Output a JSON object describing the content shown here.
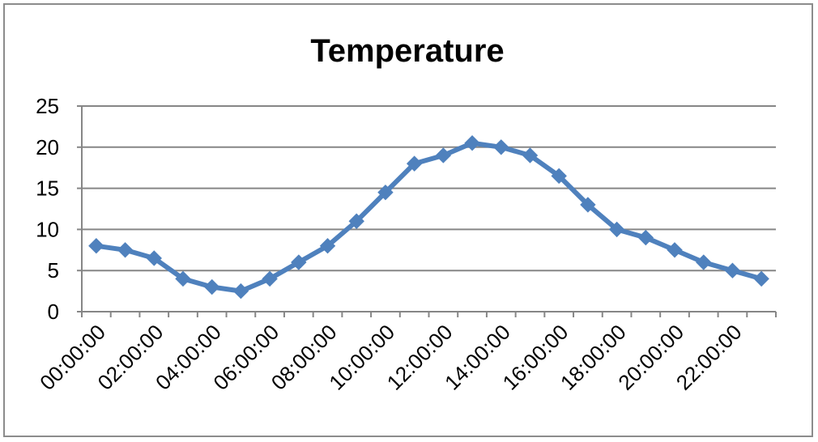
{
  "chart_data": {
    "type": "line",
    "title": "Temperature",
    "xlabel": "",
    "ylabel": "",
    "ylim": [
      0,
      25
    ],
    "y_ticks": [
      "0",
      "5",
      "10",
      "15",
      "20",
      "25"
    ],
    "x_tick_labels": [
      "00:00:00",
      "02:00:00",
      "04:00:00",
      "06:00:00",
      "08:00:00",
      "10:00:00",
      "12:00:00",
      "14:00:00",
      "16:00:00",
      "18:00:00",
      "20:00:00",
      "22:00:00"
    ],
    "x": [
      "00:00:00",
      "01:00:00",
      "02:00:00",
      "03:00:00",
      "04:00:00",
      "05:00:00",
      "06:00:00",
      "07:00:00",
      "08:00:00",
      "09:00:00",
      "10:00:00",
      "11:00:00",
      "12:00:00",
      "13:00:00",
      "14:00:00",
      "15:00:00",
      "16:00:00",
      "17:00:00",
      "18:00:00",
      "19:00:00",
      "20:00:00",
      "21:00:00",
      "22:00:00",
      "23:00:00"
    ],
    "series": [
      {
        "values": [
          8,
          7.5,
          6.5,
          4,
          3,
          2.5,
          4,
          6,
          8,
          11,
          14.5,
          18,
          19,
          20.5,
          20,
          19,
          16.5,
          13,
          10,
          9,
          7.5,
          6,
          5,
          4
        ],
        "color": "#4f81bd"
      }
    ],
    "grid": true,
    "legend": "none"
  }
}
